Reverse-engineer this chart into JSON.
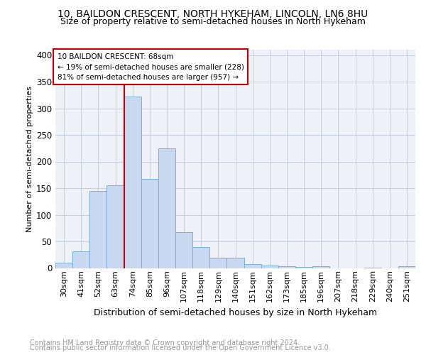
{
  "title_line1": "10, BAILDON CRESCENT, NORTH HYKEHAM, LINCOLN, LN6 8HU",
  "title_line2": "Size of property relative to semi-detached houses in North Hykeham",
  "xlabel": "Distribution of semi-detached houses by size in North Hykeham",
  "ylabel": "Number of semi-detached properties",
  "footer_line1": "Contains HM Land Registry data © Crown copyright and database right 2024.",
  "footer_line2": "Contains public sector information licensed under the Open Government Licence v3.0.",
  "categories": [
    "30sqm",
    "41sqm",
    "52sqm",
    "63sqm",
    "74sqm",
    "85sqm",
    "96sqm",
    "107sqm",
    "118sqm",
    "129sqm",
    "140sqm",
    "151sqm",
    "162sqm",
    "173sqm",
    "185sqm",
    "196sqm",
    "207sqm",
    "218sqm",
    "229sqm",
    "240sqm",
    "251sqm"
  ],
  "values": [
    10,
    32,
    145,
    155,
    322,
    168,
    225,
    68,
    39,
    20,
    20,
    7,
    5,
    4,
    2,
    3,
    0,
    0,
    1,
    0,
    3
  ],
  "bar_color": "#c8d8f0",
  "bar_edge_color": "#7ab0d4",
  "property_line_x": 3.5,
  "annotation_text_line1": "10 BAILDON CRESCENT: 68sqm",
  "annotation_text_line2": "← 19% of semi-detached houses are smaller (228)",
  "annotation_text_line3": "81% of semi-detached houses are larger (957) →",
  "annotation_box_color": "#cc0000",
  "ylim": [
    0,
    410
  ],
  "yticks": [
    0,
    50,
    100,
    150,
    200,
    250,
    300,
    350,
    400
  ],
  "grid_color": "#c8d0e0",
  "background_color": "#eef2f8",
  "title_fontsize": 10,
  "subtitle_fontsize": 9,
  "ylabel_fontsize": 8,
  "xlabel_fontsize": 9,
  "tick_fontsize": 8,
  "footer_fontsize": 7
}
